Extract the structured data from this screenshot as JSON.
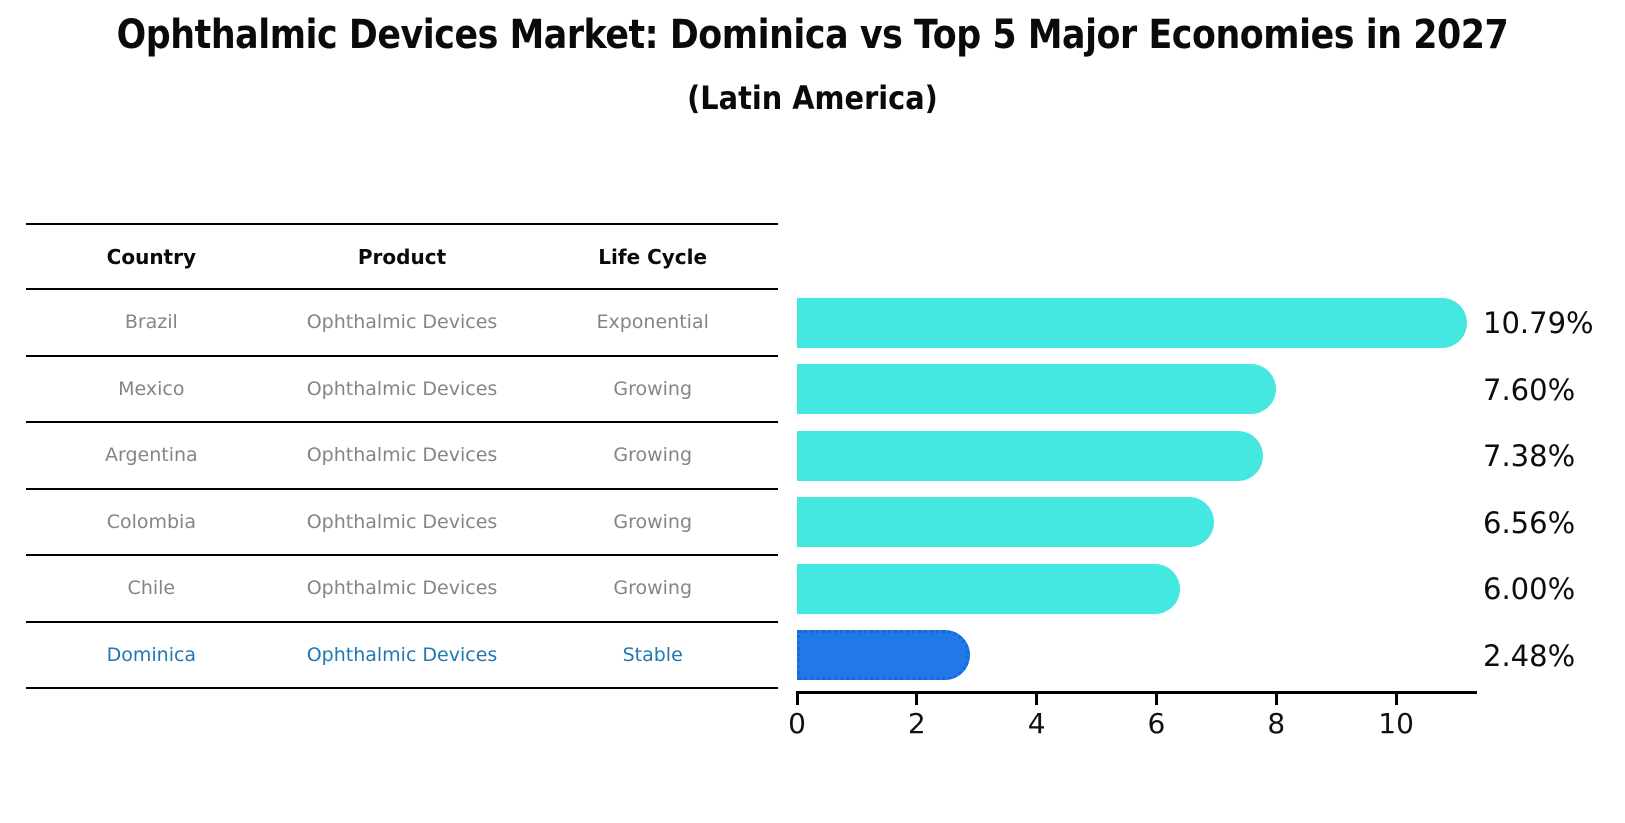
{
  "title": "Ophthalmic Devices Market: Dominica vs Top 5 Major Economies in 2027",
  "subtitle": "(Latin America)",
  "table": {
    "headers": [
      "Country",
      "Product",
      "Life Cycle"
    ],
    "rows": [
      {
        "country": "Brazil",
        "product": "Ophthalmic Devices",
        "life_cycle": "Exponential",
        "highlight": false
      },
      {
        "country": "Mexico",
        "product": "Ophthalmic Devices",
        "life_cycle": "Growing",
        "highlight": false
      },
      {
        "country": "Argentina",
        "product": "Ophthalmic Devices",
        "life_cycle": "Growing",
        "highlight": false
      },
      {
        "country": "Colombia",
        "product": "Ophthalmic Devices",
        "life_cycle": "Growing",
        "highlight": false
      },
      {
        "country": "Chile",
        "product": "Ophthalmic Devices",
        "life_cycle": "Growing",
        "highlight": false
      },
      {
        "country": "Dominica",
        "product": "Ophthalmic Devices",
        "life_cycle": "Stable",
        "highlight": true
      }
    ]
  },
  "chart_data": {
    "type": "bar",
    "orientation": "horizontal",
    "title": "Ophthalmic Devices Market: Dominica vs Top 5 Major Economies in 2027",
    "subtitle": "(Latin America)",
    "categories": [
      "Brazil",
      "Mexico",
      "Argentina",
      "Colombia",
      "Chile",
      "Dominica"
    ],
    "values": [
      10.79,
      7.6,
      7.38,
      6.56,
      6.0,
      2.48
    ],
    "value_labels": [
      "10.79%",
      "7.60%",
      "7.38%",
      "6.56%",
      "6.00%",
      "2.48%"
    ],
    "xticks": [
      0,
      2,
      4,
      6,
      8,
      10
    ],
    "xlim": [
      0,
      11.35
    ],
    "grid": false,
    "legend": false,
    "bar_color": "#45E7E1",
    "highlight_index": 5,
    "highlight_color": "#2378E8"
  },
  "colors": {
    "body_text": "#858585",
    "highlight_text": "#1F77B4",
    "highlight_border": "#1668D8",
    "bar_cyan": "#45E7E1",
    "bar_blue": "#2378E8",
    "axis": "#000000"
  }
}
